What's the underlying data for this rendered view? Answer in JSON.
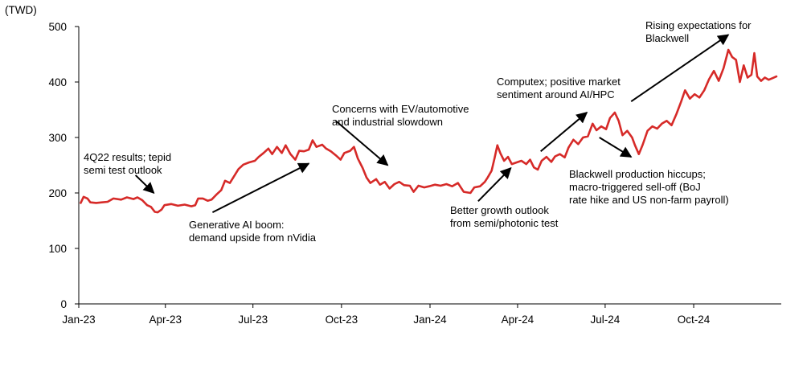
{
  "chart_data": {
    "type": "line",
    "unit_label": "(TWD)",
    "title": "",
    "xlabel": "",
    "ylabel": "",
    "x_range": [
      "2023-01-01",
      "2024-12-31"
    ],
    "ylim": [
      0,
      500
    ],
    "y_ticks": [
      0,
      100,
      200,
      300,
      400,
      500
    ],
    "x_ticks": [
      {
        "date": "2023-01-01",
        "label": "Jan-23"
      },
      {
        "date": "2023-04-01",
        "label": "Apr-23"
      },
      {
        "date": "2023-07-01",
        "label": "Jul-23"
      },
      {
        "date": "2023-10-01",
        "label": "Oct-23"
      },
      {
        "date": "2024-01-01",
        "label": "Jan-24"
      },
      {
        "date": "2024-04-01",
        "label": "Apr-24"
      },
      {
        "date": "2024-07-01",
        "label": "Jul-24"
      },
      {
        "date": "2024-10-01",
        "label": "Oct-24"
      }
    ],
    "grid": false,
    "series_color": "#d62a28",
    "series": [
      {
        "name": "",
        "points": [
          [
            "2023-01-03",
            182
          ],
          [
            "2023-01-06",
            193
          ],
          [
            "2023-01-10",
            190
          ],
          [
            "2023-01-13",
            183
          ],
          [
            "2023-01-19",
            182
          ],
          [
            "2023-01-31",
            184
          ],
          [
            "2023-02-06",
            190
          ],
          [
            "2023-02-14",
            188
          ],
          [
            "2023-02-20",
            192
          ],
          [
            "2023-02-27",
            189
          ],
          [
            "2023-03-03",
            192
          ],
          [
            "2023-03-08",
            187
          ],
          [
            "2023-03-13",
            178
          ],
          [
            "2023-03-17",
            175
          ],
          [
            "2023-03-21",
            166
          ],
          [
            "2023-03-24",
            165
          ],
          [
            "2023-03-28",
            170
          ],
          [
            "2023-03-31",
            178
          ],
          [
            "2023-04-07",
            180
          ],
          [
            "2023-04-14",
            177
          ],
          [
            "2023-04-21",
            179
          ],
          [
            "2023-04-28",
            176
          ],
          [
            "2023-05-02",
            178
          ],
          [
            "2023-05-05",
            190
          ],
          [
            "2023-05-10",
            190
          ],
          [
            "2023-05-15",
            186
          ],
          [
            "2023-05-19",
            188
          ],
          [
            "2023-05-24",
            197
          ],
          [
            "2023-05-29",
            205
          ],
          [
            "2023-06-02",
            222
          ],
          [
            "2023-06-07",
            218
          ],
          [
            "2023-06-12",
            232
          ],
          [
            "2023-06-16",
            243
          ],
          [
            "2023-06-21",
            251
          ],
          [
            "2023-06-27",
            255
          ],
          [
            "2023-07-03",
            258
          ],
          [
            "2023-07-07",
            265
          ],
          [
            "2023-07-12",
            272
          ],
          [
            "2023-07-17",
            280
          ],
          [
            "2023-07-21",
            270
          ],
          [
            "2023-07-26",
            283
          ],
          [
            "2023-07-31",
            272
          ],
          [
            "2023-08-04",
            286
          ],
          [
            "2023-08-09",
            270
          ],
          [
            "2023-08-14",
            260
          ],
          [
            "2023-08-18",
            276
          ],
          [
            "2023-08-23",
            275
          ],
          [
            "2023-08-28",
            278
          ],
          [
            "2023-09-01",
            295
          ],
          [
            "2023-09-05",
            283
          ],
          [
            "2023-09-11",
            287
          ],
          [
            "2023-09-15",
            280
          ],
          [
            "2023-09-20",
            275
          ],
          [
            "2023-09-25",
            268
          ],
          [
            "2023-09-30",
            260
          ],
          [
            "2023-10-04",
            272
          ],
          [
            "2023-10-10",
            276
          ],
          [
            "2023-10-14",
            283
          ],
          [
            "2023-10-18",
            262
          ],
          [
            "2023-10-23",
            245
          ],
          [
            "2023-10-27",
            228
          ],
          [
            "2023-10-31",
            218
          ],
          [
            "2023-11-06",
            225
          ],
          [
            "2023-11-10",
            215
          ],
          [
            "2023-11-15",
            220
          ],
          [
            "2023-11-20",
            208
          ],
          [
            "2023-11-25",
            216
          ],
          [
            "2023-11-30",
            220
          ],
          [
            "2023-12-05",
            214
          ],
          [
            "2023-12-11",
            213
          ],
          [
            "2023-12-15",
            202
          ],
          [
            "2023-12-20",
            213
          ],
          [
            "2023-12-26",
            210
          ],
          [
            "2023-12-31",
            212
          ],
          [
            "2024-01-06",
            215
          ],
          [
            "2024-01-12",
            213
          ],
          [
            "2024-01-18",
            216
          ],
          [
            "2024-01-24",
            212
          ],
          [
            "2024-01-30",
            218
          ],
          [
            "2024-02-05",
            202
          ],
          [
            "2024-02-12",
            200
          ],
          [
            "2024-02-16",
            210
          ],
          [
            "2024-02-22",
            212
          ],
          [
            "2024-02-27",
            220
          ],
          [
            "2024-03-01",
            228
          ],
          [
            "2024-03-05",
            240
          ],
          [
            "2024-03-08",
            262
          ],
          [
            "2024-03-11",
            286
          ],
          [
            "2024-03-14",
            272
          ],
          [
            "2024-03-18",
            258
          ],
          [
            "2024-03-22",
            265
          ],
          [
            "2024-03-26",
            252
          ],
          [
            "2024-03-31",
            255
          ],
          [
            "2024-04-05",
            258
          ],
          [
            "2024-04-10",
            252
          ],
          [
            "2024-04-14",
            260
          ],
          [
            "2024-04-18",
            246
          ],
          [
            "2024-04-22",
            242
          ],
          [
            "2024-04-26",
            258
          ],
          [
            "2024-05-01",
            265
          ],
          [
            "2024-05-06",
            256
          ],
          [
            "2024-05-10",
            266
          ],
          [
            "2024-05-15",
            270
          ],
          [
            "2024-05-20",
            264
          ],
          [
            "2024-05-24",
            282
          ],
          [
            "2024-05-29",
            296
          ],
          [
            "2024-06-03",
            288
          ],
          [
            "2024-06-08",
            300
          ],
          [
            "2024-06-13",
            302
          ],
          [
            "2024-06-18",
            325
          ],
          [
            "2024-06-22",
            313
          ],
          [
            "2024-06-27",
            320
          ],
          [
            "2024-07-02",
            315
          ],
          [
            "2024-07-06",
            335
          ],
          [
            "2024-07-11",
            345
          ],
          [
            "2024-07-15",
            330
          ],
          [
            "2024-07-19",
            304
          ],
          [
            "2024-07-24",
            312
          ],
          [
            "2024-07-29",
            300
          ],
          [
            "2024-08-01",
            286
          ],
          [
            "2024-08-05",
            270
          ],
          [
            "2024-08-09",
            287
          ],
          [
            "2024-08-14",
            312
          ],
          [
            "2024-08-19",
            320
          ],
          [
            "2024-08-24",
            316
          ],
          [
            "2024-08-29",
            325
          ],
          [
            "2024-09-03",
            330
          ],
          [
            "2024-09-08",
            322
          ],
          [
            "2024-09-13",
            342
          ],
          [
            "2024-09-18",
            365
          ],
          [
            "2024-09-22",
            385
          ],
          [
            "2024-09-27",
            370
          ],
          [
            "2024-10-02",
            378
          ],
          [
            "2024-10-07",
            372
          ],
          [
            "2024-10-12",
            385
          ],
          [
            "2024-10-17",
            405
          ],
          [
            "2024-10-22",
            420
          ],
          [
            "2024-10-27",
            402
          ],
          [
            "2024-11-01",
            425
          ],
          [
            "2024-11-06",
            458
          ],
          [
            "2024-11-10",
            445
          ],
          [
            "2024-11-14",
            440
          ],
          [
            "2024-11-18",
            400
          ],
          [
            "2024-11-22",
            430
          ],
          [
            "2024-11-26",
            408
          ],
          [
            "2024-11-30",
            413
          ],
          [
            "2024-12-03",
            452
          ],
          [
            "2024-12-06",
            410
          ],
          [
            "2024-12-10",
            402
          ],
          [
            "2024-12-14",
            408
          ],
          [
            "2024-12-18",
            404
          ],
          [
            "2024-12-22",
            407
          ],
          [
            "2024-12-26",
            410
          ]
        ]
      }
    ],
    "annotations": [
      {
        "id": "q4-results",
        "lines": [
          "4Q22 results; tepid",
          "semi test outlook"
        ],
        "arrow_from": [
          "2023-03-01",
          232
        ],
        "arrow_to": [
          "2023-03-20",
          200
        ]
      },
      {
        "id": "genai-boom",
        "lines": [
          "Generative AI boom:",
          "demand upside from nVidia"
        ],
        "arrow_from": [
          "2023-05-20",
          165
        ],
        "arrow_to": [
          "2023-08-28",
          253
        ]
      },
      {
        "id": "ev-concerns",
        "lines": [
          "Concerns with EV/automotive",
          "and industrial slowdown"
        ],
        "arrow_from": [
          "2023-09-25",
          330
        ],
        "arrow_to": [
          "2023-11-18",
          250
        ]
      },
      {
        "id": "better-growth",
        "lines": [
          "Better growth outlook",
          "from semi/photonic test"
        ],
        "arrow_from": [
          "2024-02-20",
          185
        ],
        "arrow_to": [
          "2024-03-25",
          245
        ]
      },
      {
        "id": "computex",
        "lines": [
          "Computex; positive market",
          "sentiment around AI/HPC"
        ],
        "arrow_from": [
          "2024-04-25",
          275
        ],
        "arrow_to": [
          "2024-06-12",
          345
        ]
      },
      {
        "id": "blackwell-hiccups",
        "lines": [
          "Blackwell production hiccups;",
          "macro-triggered sell-off (BoJ",
          "rate hike and US non-farm payroll)"
        ],
        "arrow_from": [
          "2024-06-25",
          300
        ],
        "arrow_to": [
          "2024-07-28",
          265
        ]
      },
      {
        "id": "rising-expectations",
        "lines": [
          "Rising expectations for",
          "Blackwell"
        ],
        "arrow_from": [
          "2024-07-28",
          365
        ],
        "arrow_to": [
          "2024-11-06",
          485
        ]
      }
    ]
  }
}
